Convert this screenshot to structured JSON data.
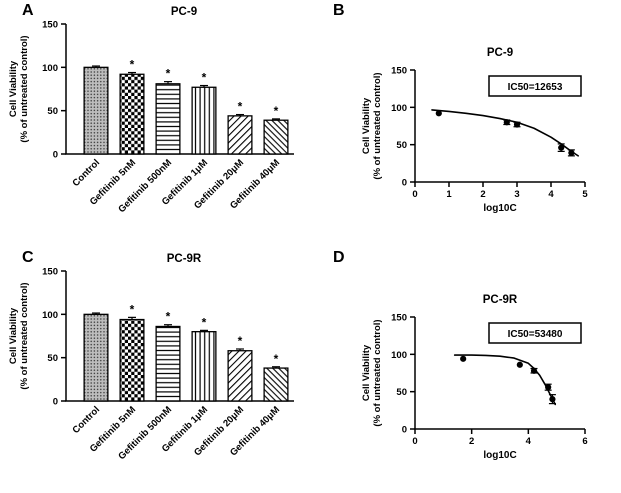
{
  "panels": [
    {
      "label": "A"
    },
    {
      "label": "B"
    },
    {
      "label": "C"
    },
    {
      "label": "D"
    }
  ],
  "colors": {
    "foreground": "#000000",
    "background": "#ffffff"
  },
  "chart_data": [
    {
      "type": "bar",
      "title": "PC-9",
      "ylabel_lines": [
        "Cell Viability",
        "(% of untreated control)"
      ],
      "ylim": [
        0,
        150
      ],
      "yticks": [
        0,
        50,
        100,
        150
      ],
      "categories": [
        "Control",
        "Gefitinib 5nM",
        "Gefitinib 500nM",
        "Gefitinib 1μM",
        "Gefitinib 20μM",
        "Gefitinib 40μM"
      ],
      "values": [
        100,
        92,
        81,
        77,
        44,
        39
      ],
      "errors": [
        1.5,
        2,
        2.5,
        2,
        1.5,
        1.5
      ],
      "significance": [
        "",
        "*",
        "*",
        "*",
        "*",
        "*"
      ],
      "patterns": [
        "dots",
        "checker",
        "hlines",
        "vlines",
        "diag1",
        "diag2"
      ]
    },
    {
      "type": "scatter",
      "title": "PC-9",
      "annotation": "IC50=12653",
      "xlabel": "log10C",
      "ylabel_lines": [
        "Cell Viability",
        "(% of untreated control)"
      ],
      "xlim": [
        0,
        5
      ],
      "xticks": [
        0,
        1,
        2,
        3,
        4,
        5
      ],
      "ylim": [
        0,
        150
      ],
      "yticks": [
        0,
        50,
        100,
        150
      ],
      "points": [
        {
          "x": 0.7,
          "y": 92,
          "e": 0
        },
        {
          "x": 2.7,
          "y": 80,
          "e": 3
        },
        {
          "x": 3.0,
          "y": 77,
          "e": 3
        },
        {
          "x": 4.3,
          "y": 46,
          "e": 5
        },
        {
          "x": 4.6,
          "y": 39,
          "e": 4
        }
      ],
      "curve": [
        [
          0.5,
          96.5
        ],
        [
          1.0,
          94.5
        ],
        [
          1.5,
          92
        ],
        [
          2.0,
          89
        ],
        [
          2.5,
          85
        ],
        [
          3.0,
          80
        ],
        [
          3.5,
          72
        ],
        [
          4.0,
          60
        ],
        [
          4.3,
          51
        ],
        [
          4.6,
          41
        ],
        [
          4.8,
          35
        ]
      ]
    },
    {
      "type": "bar",
      "title": "PC-9R",
      "ylabel_lines": [
        "Cell Viability",
        "(% of untreated control)"
      ],
      "ylim": [
        0,
        150
      ],
      "yticks": [
        0,
        50,
        100,
        150
      ],
      "categories": [
        "Control",
        "Gefitinib 5nM",
        "Gefitinib 500nM",
        "Gefitinib 1μM",
        "Gefitinib 20μM",
        "Gefitinib 40μM"
      ],
      "values": [
        100,
        94,
        86,
        80,
        58,
        38
      ],
      "errors": [
        1.5,
        2.5,
        2,
        1.5,
        2,
        1.5
      ],
      "significance": [
        "",
        "*",
        "*",
        "*",
        "*",
        "*"
      ],
      "patterns": [
        "dots",
        "checker",
        "hlines",
        "vlines",
        "diag1",
        "diag2"
      ]
    },
    {
      "type": "scatter",
      "title": "PC-9R",
      "annotation": "IC50=53480",
      "xlabel": "log10C",
      "ylabel_lines": [
        "Cell Viability",
        "(% of untreated control)"
      ],
      "xlim": [
        0,
        6
      ],
      "xticks": [
        0,
        2,
        4,
        6
      ],
      "ylim": [
        0,
        150
      ],
      "yticks": [
        0,
        50,
        100,
        150
      ],
      "points": [
        {
          "x": 1.7,
          "y": 94,
          "e": 0
        },
        {
          "x": 3.7,
          "y": 86,
          "e": 0
        },
        {
          "x": 4.2,
          "y": 78,
          "e": 3
        },
        {
          "x": 4.7,
          "y": 56,
          "e": 4
        },
        {
          "x": 4.85,
          "y": 40,
          "e": 6
        }
      ],
      "curve": [
        [
          1.4,
          99
        ],
        [
          2.0,
          99
        ],
        [
          2.5,
          98.5
        ],
        [
          3.0,
          97.5
        ],
        [
          3.5,
          95
        ],
        [
          4.0,
          88
        ],
        [
          4.2,
          81
        ],
        [
          4.4,
          72
        ],
        [
          4.6,
          59
        ],
        [
          4.8,
          44
        ],
        [
          4.95,
          33
        ]
      ]
    }
  ]
}
